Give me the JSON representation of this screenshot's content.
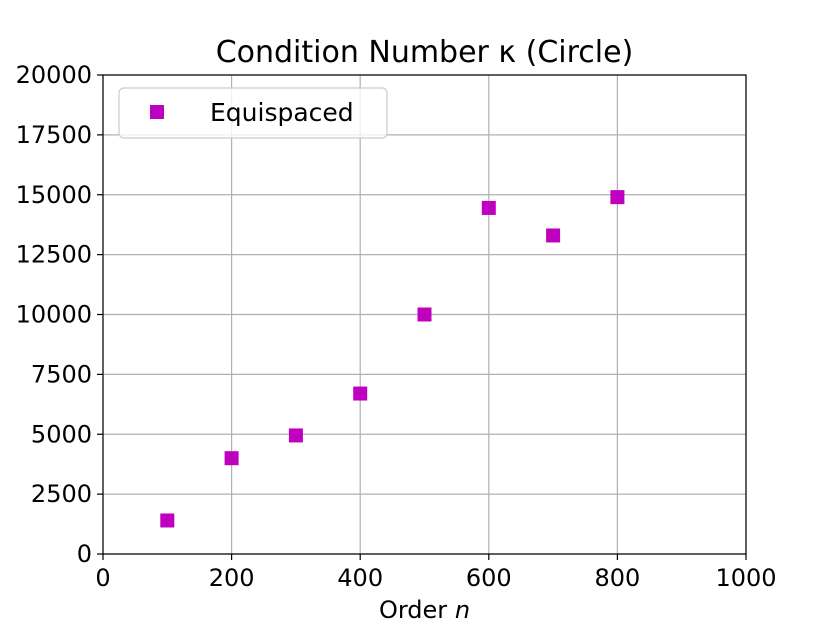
{
  "chart_data": {
    "type": "scatter",
    "title": "Condition Number κ (Circle)",
    "xlabel": "Order n",
    "xlabel_text": "Order",
    "xlabel_var": "n",
    "ylabel": "",
    "xlim": [
      0,
      1000
    ],
    "ylim": [
      0,
      20000
    ],
    "xticks": [
      0,
      200,
      400,
      600,
      800,
      1000
    ],
    "yticks": [
      0,
      2500,
      5000,
      7500,
      10000,
      12500,
      15000,
      17500,
      20000
    ],
    "grid": true,
    "legend_position": "top-left",
    "series": [
      {
        "name": "Equispaced",
        "marker": "square",
        "color": "#bf00bf",
        "x": [
          100,
          200,
          300,
          400,
          500,
          600,
          700,
          800
        ],
        "y": [
          1400,
          4000,
          4950,
          6700,
          10000,
          14450,
          13300,
          14900
        ]
      }
    ]
  }
}
